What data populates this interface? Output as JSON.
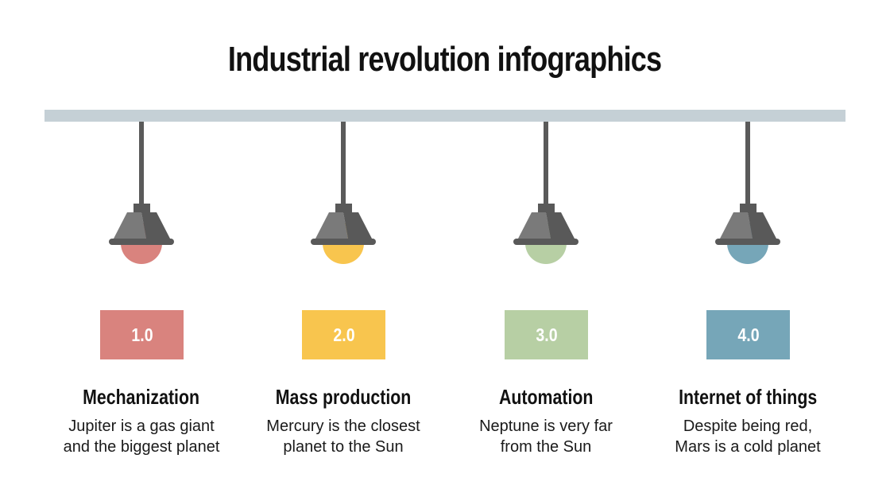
{
  "title": "Industrial revolution infographics",
  "colors": {
    "rail": "#c5d0d6",
    "cord": "#5a5a5a",
    "shade_light": "#7a7a7a",
    "shade_dark": "#595959",
    "background": "#ffffff"
  },
  "stages": [
    {
      "version": "1.0",
      "heading": "Mechanization",
      "line1": "Jupiter is a gas giant",
      "line2": "and the biggest planet",
      "color": "#d9837e",
      "icon": "pendant-lamp-icon"
    },
    {
      "version": "2.0",
      "heading": "Mass production",
      "line1": "Mercury is the closest",
      "line2": "planet to the Sun",
      "color": "#f8c54e",
      "icon": "pendant-lamp-icon"
    },
    {
      "version": "3.0",
      "heading": "Automation",
      "line1": "Neptune is very far",
      "line2": "from the Sun",
      "color": "#b7cfa4",
      "icon": "pendant-lamp-icon"
    },
    {
      "version": "4.0",
      "heading": "Internet of things",
      "line1": "Despite being red,",
      "line2": "Mars is a cold planet",
      "color": "#76a6b8",
      "icon": "pendant-lamp-icon"
    }
  ]
}
